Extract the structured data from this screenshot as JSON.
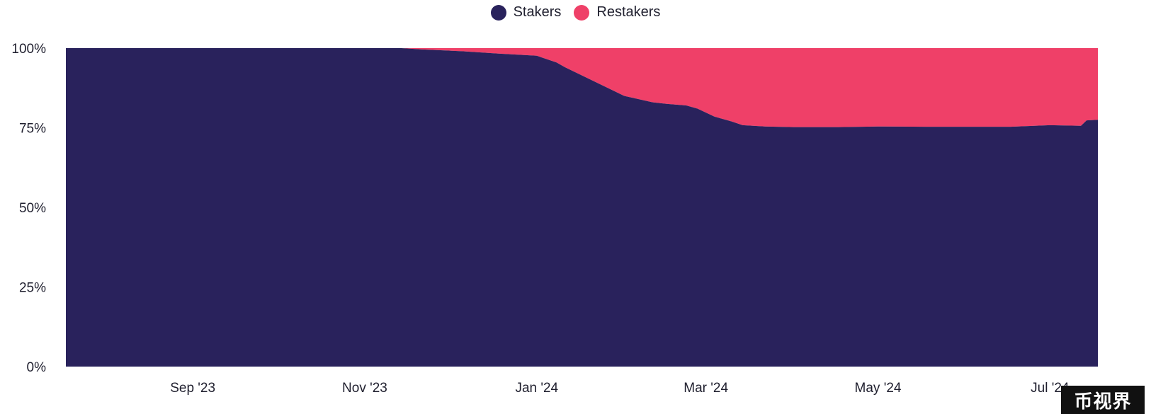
{
  "chart_data": {
    "type": "area",
    "stacked": true,
    "normalized": true,
    "x": [
      "2023-08-01",
      "2023-09-01",
      "2023-10-01",
      "2023-11-01",
      "2023-11-28",
      "2023-12-05",
      "2023-12-20",
      "2024-01-01",
      "2024-01-15",
      "2024-01-22",
      "2024-01-25",
      "2024-02-01",
      "2024-02-08",
      "2024-02-15",
      "2024-02-20",
      "2024-02-25",
      "2024-03-01",
      "2024-03-08",
      "2024-03-12",
      "2024-03-18",
      "2024-03-24",
      "2024-03-28",
      "2024-04-05",
      "2024-04-15",
      "2024-05-01",
      "2024-05-15",
      "2024-06-01",
      "2024-06-15",
      "2024-07-01",
      "2024-07-15",
      "2024-07-26",
      "2024-07-28",
      "2024-08-01"
    ],
    "series": [
      {
        "name": "Stakers",
        "color": "#29225c",
        "values": [
          100,
          100,
          100,
          100,
          100,
          99.6,
          99.0,
          98.3,
          97.6,
          95.5,
          94.0,
          91.0,
          88.0,
          85.0,
          84.0,
          83.0,
          82.5,
          82.0,
          81.0,
          78.5,
          77.0,
          75.8,
          75.4,
          75.2,
          75.2,
          75.4,
          75.3,
          75.3,
          75.3,
          75.8,
          75.6,
          77.3,
          77.5
        ]
      },
      {
        "name": "Restakers",
        "color": "#ef4068",
        "values": [
          0,
          0,
          0,
          0,
          0,
          0.4,
          1.0,
          1.7,
          2.4,
          4.5,
          6.0,
          9.0,
          12.0,
          15.0,
          16.0,
          17.0,
          17.5,
          18.0,
          19.0,
          21.5,
          23.0,
          24.2,
          24.6,
          24.8,
          24.8,
          24.6,
          24.7,
          24.7,
          24.7,
          24.2,
          24.4,
          22.7,
          22.5
        ]
      }
    ],
    "y_ticks": [
      "0%",
      "25%",
      "50%",
      "75%",
      "100%"
    ],
    "x_ticks": [
      {
        "date": "2023-09-15",
        "label": "Sep '23"
      },
      {
        "date": "2023-11-15",
        "label": "Nov '23"
      },
      {
        "date": "2024-01-15",
        "label": "Jan '24"
      },
      {
        "date": "2024-03-15",
        "label": "Mar '24"
      },
      {
        "date": "2024-05-15",
        "label": "May '24"
      },
      {
        "date": "2024-07-15",
        "label": "Jul '24"
      }
    ],
    "ylim": [
      0,
      100
    ],
    "xlim": [
      "2023-08-01",
      "2024-08-01"
    ],
    "grid": false,
    "legend_position": "top-center",
    "title": "",
    "xlabel": "",
    "ylabel": ""
  },
  "legend": [
    {
      "label": "Stakers",
      "color": "#29225c"
    },
    {
      "label": "Restakers",
      "color": "#ef4068"
    }
  ],
  "watermark": "币视界"
}
